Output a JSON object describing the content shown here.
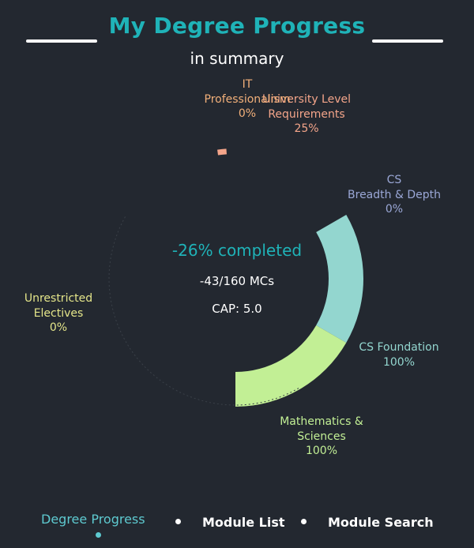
{
  "header": {
    "title": "My Degree Progress",
    "subtitle": "in summary"
  },
  "summary": {
    "completed_text": "-26% completed",
    "mcs_text": "-43/160 MCs",
    "cap_text": "CAP: 5.0"
  },
  "chart_data": {
    "type": "radial_bar",
    "segments": [
      {
        "name": "University Level Requirements",
        "label": "University Level\nRequirements",
        "percent_text": "25%",
        "value": 25,
        "color": "#f4a58a"
      },
      {
        "name": "CS Breadth & Depth",
        "label": "CS\nBreadth & Depth",
        "percent_text": "0%",
        "value": 0,
        "color": "#9aa7d6"
      },
      {
        "name": "CS Foundation",
        "label": "CS Foundation",
        "percent_text": "100%",
        "value": 100,
        "color": "#93d6cf"
      },
      {
        "name": "Mathematics & Sciences",
        "label": "Mathematics &\nSciences",
        "percent_text": "100%",
        "value": 100,
        "color": "#c2ef95"
      },
      {
        "name": "Unrestricted Electives",
        "label": "Unrestricted\nElectives",
        "percent_text": "0%",
        "value": 0,
        "color": "#e5e68a"
      },
      {
        "name": "IT Professionalism",
        "label": "IT\nProfessionalism",
        "percent_text": "0%",
        "value": 0,
        "color": "#f2b07a"
      }
    ]
  },
  "nav": {
    "items": [
      {
        "label": "Degree Progress",
        "active": true
      },
      {
        "label": "Module List",
        "active": false
      },
      {
        "label": "Module Search",
        "active": false
      }
    ]
  }
}
